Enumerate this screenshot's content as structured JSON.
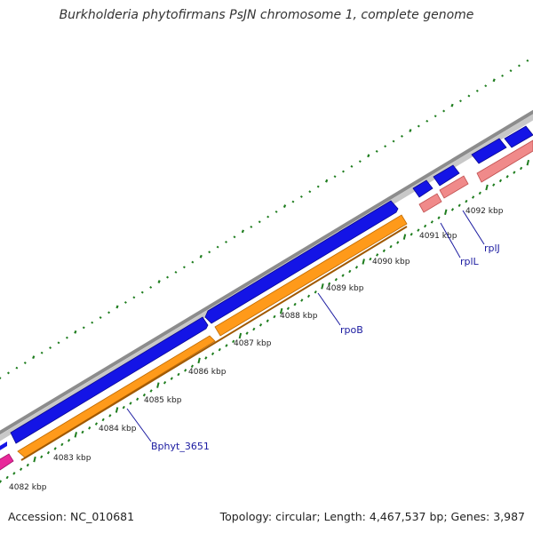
{
  "title": "Burkholderia phytofirmans PsJN chromosome 1, complete genome",
  "footer": {
    "accession": "Accession: NC_010681",
    "summary": "Topology: circular; Length: 4,467,537 bp; Genes: 3,987"
  },
  "colors": {
    "backbone": "#8c8c8c",
    "forward_cds": "#1414e6",
    "reverse_gene": "#ff9a1a",
    "reverse_rna": "#f08a8a",
    "pink_feature": "#e8289a",
    "gc_skew_dots": "#1e7d1e",
    "ticks": "#1e7d1e",
    "label_line": "#1a1aa0"
  },
  "scale_ticks": [
    {
      "label": "4082 kbp"
    },
    {
      "label": "4083 kbp"
    },
    {
      "label": "4084 kbp"
    },
    {
      "label": "4085 kbp"
    },
    {
      "label": "4086 kbp"
    },
    {
      "label": "4087 kbp"
    },
    {
      "label": "4088 kbp"
    },
    {
      "label": "4089 kbp"
    },
    {
      "label": "4090 kbp"
    },
    {
      "label": "4091 kbp"
    },
    {
      "label": "4092 kbp"
    }
  ],
  "gene_labels": [
    {
      "label": "Bphyt_3651"
    },
    {
      "label": "rpoB"
    },
    {
      "label": "rplL"
    },
    {
      "label": "rplJ"
    }
  ]
}
